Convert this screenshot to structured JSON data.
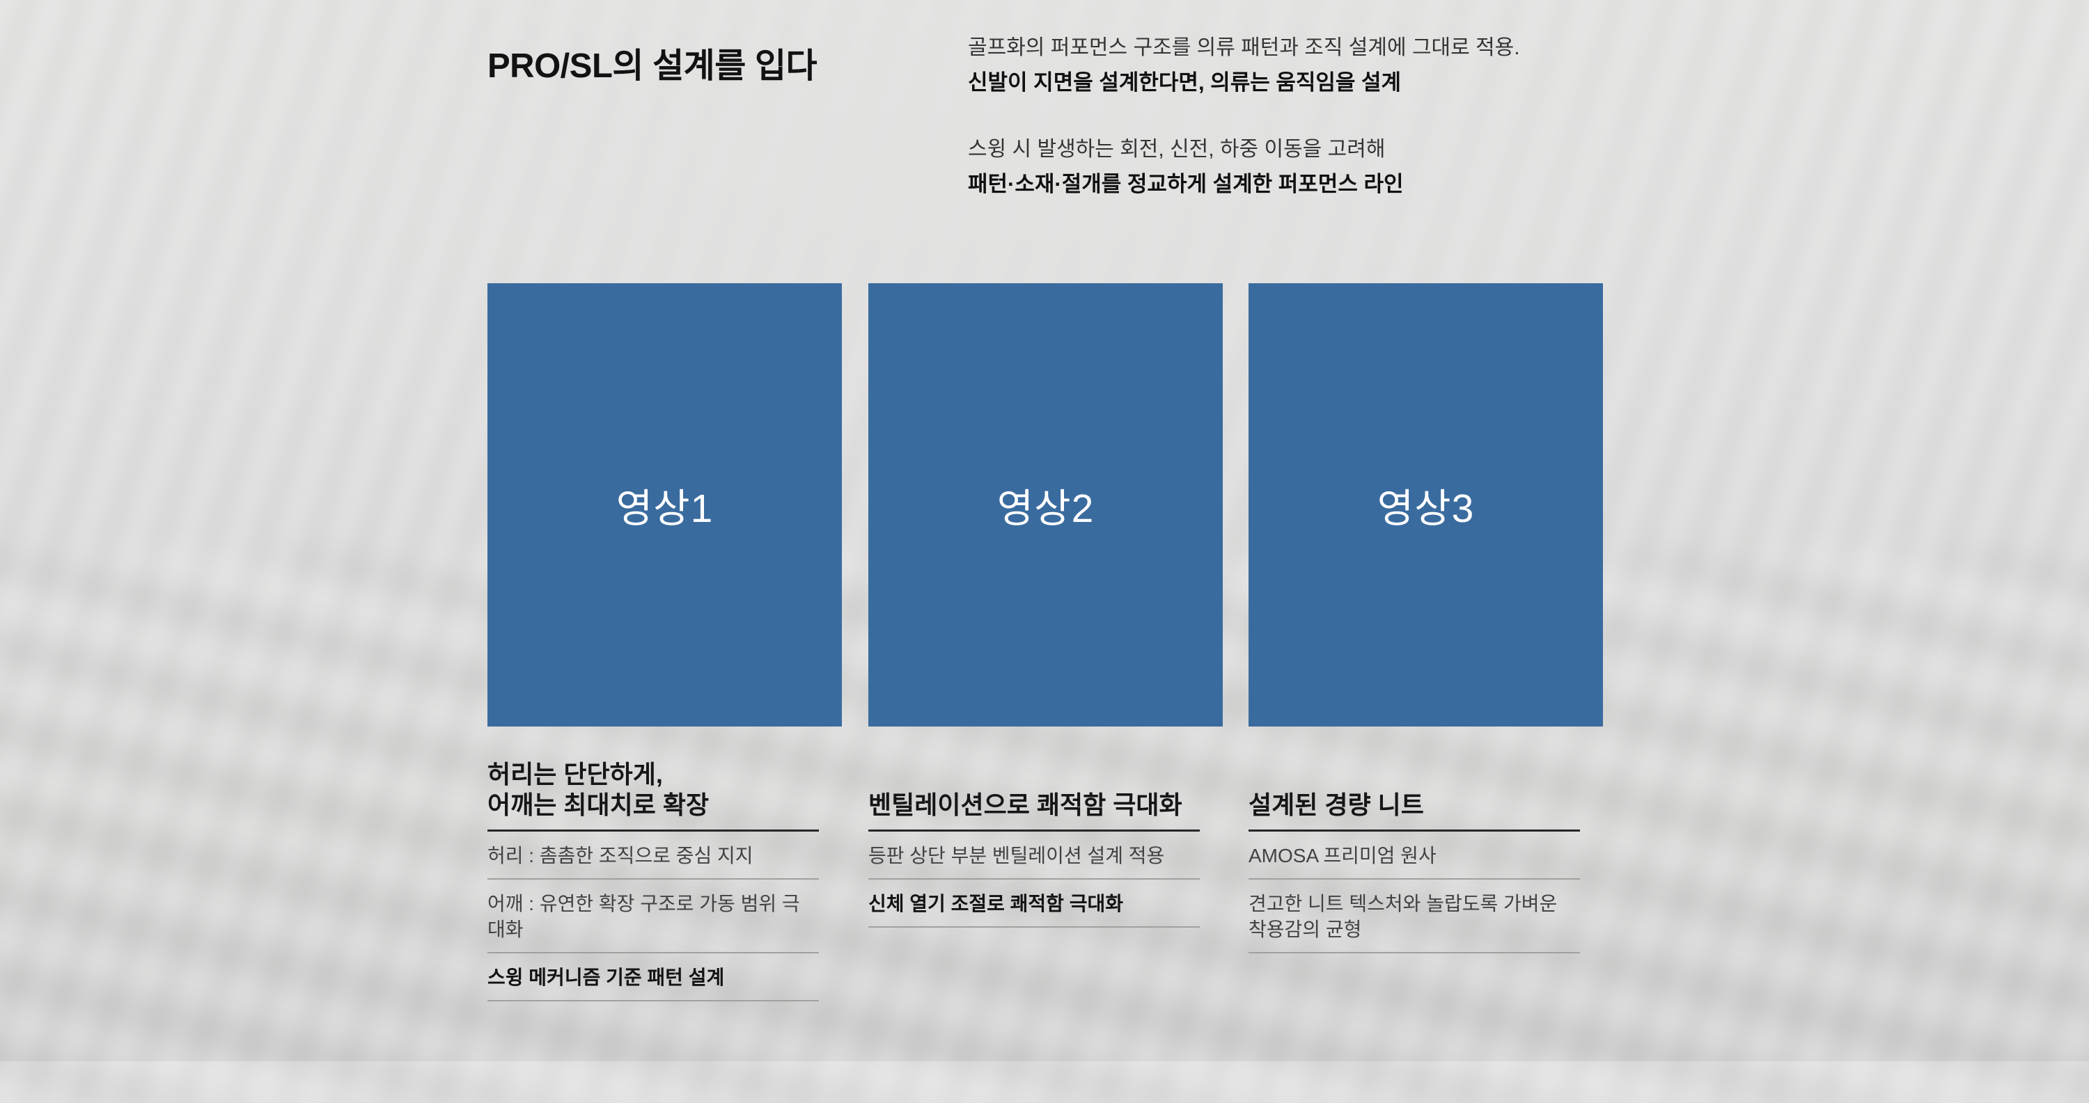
{
  "header": {
    "title": "PRO/SL의 설계를 입다",
    "intro": {
      "p1_line1": "골프화의 퍼포먼스 구조를 의류 패턴과 조직 설계에 그대로 적용.",
      "p1_line2": "신발이 지면을 설계한다면, 의류는 움직임을 설계",
      "p2_line1": "스윙 시 발생하는 회전, 신전, 하중 이동을 고려해",
      "p2_line2": "패턴·소재·절개를 정교하게 설계한 퍼포먼스 라인"
    }
  },
  "colors": {
    "page_background": "#e1e1e0",
    "video_panel": "#3a6b9f",
    "video_label_text": "#ffffff",
    "heading_text": "#161616",
    "body_text": "#424242",
    "divider_dark": "#262626",
    "divider_light": "#a0a09f"
  },
  "cards": [
    {
      "video_label": "영상1",
      "heading": "허리는 단단하게,\n어깨는 최대치로 확장",
      "items": [
        {
          "text": "허리 : 촘촘한 조직으로 중심 지지",
          "bold": false
        },
        {
          "text": "어깨 : 유연한 확장 구조로 가동 범위 극대화",
          "bold": false
        },
        {
          "text": "스윙 메커니즘 기준 패턴 설계",
          "bold": true
        }
      ]
    },
    {
      "video_label": "영상2",
      "heading": "벤틸레이션으로 쾌적함 극대화",
      "items": [
        {
          "text": "등판 상단 부분 벤틸레이션 설계 적용",
          "bold": false
        },
        {
          "text": "신체 열기 조절로 쾌적함 극대화",
          "bold": true
        }
      ]
    },
    {
      "video_label": "영상3",
      "heading": "설계된 경량 니트",
      "items": [
        {
          "text": "AMOSA 프리미엄 원사",
          "bold": false
        },
        {
          "text": "견고한 니트 텍스처와 놀랍도록 가벼운\n착용감의 균형",
          "bold": false
        }
      ]
    }
  ]
}
